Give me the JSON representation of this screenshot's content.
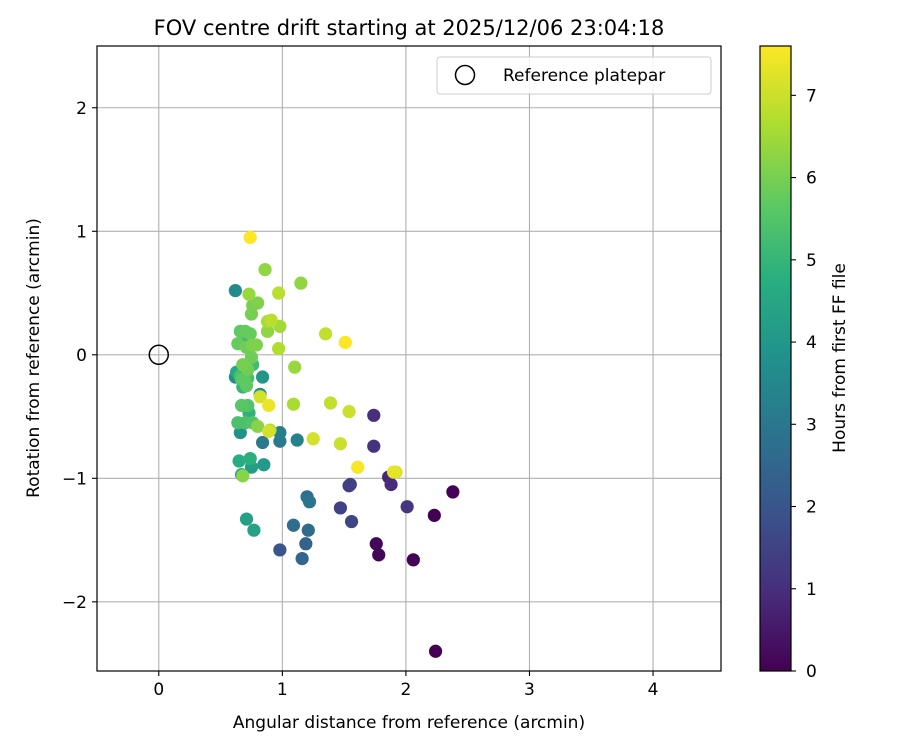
{
  "chart_data": {
    "type": "scatter",
    "title": "FOV centre drift starting at 2025/12/06 23:04:18",
    "xlabel": "Angular distance from reference (arcmin)",
    "ylabel": "Rotation from reference (arcmin)",
    "xlim": [
      -0.5,
      4.55
    ],
    "ylim": [
      -2.56,
      2.5
    ],
    "xticks": [
      0,
      1,
      2,
      3,
      4
    ],
    "yticks": [
      -2,
      -1,
      0,
      1,
      2
    ],
    "grid": true,
    "legend": {
      "position": "upper-right",
      "entries": [
        {
          "label": "Reference platepar",
          "marker": "open-circle"
        }
      ]
    },
    "reference_point": {
      "x": 0,
      "y": 0,
      "label": "Reference platepar"
    },
    "colorbar": {
      "label": "Hours from first FF file",
      "colormap": "viridis",
      "min": 0,
      "max": 7.6,
      "ticks": [
        0,
        1,
        2,
        3,
        4,
        5,
        6,
        7
      ]
    },
    "points": [
      {
        "x": 2.24,
        "y": -2.4,
        "c": 0.0
      },
      {
        "x": 2.23,
        "y": -1.3,
        "c": 0.0
      },
      {
        "x": 2.38,
        "y": -1.11,
        "c": 0.05
      },
      {
        "x": 2.06,
        "y": -1.66,
        "c": 0.05
      },
      {
        "x": 1.76,
        "y": -1.53,
        "c": 0.1
      },
      {
        "x": 1.78,
        "y": -1.62,
        "c": 0.1
      },
      {
        "x": 1.86,
        "y": -0.99,
        "c": 0.8
      },
      {
        "x": 1.88,
        "y": -1.05,
        "c": 0.9
      },
      {
        "x": 1.74,
        "y": -0.49,
        "c": 1.0
      },
      {
        "x": 1.74,
        "y": -0.74,
        "c": 1.1
      },
      {
        "x": 2.01,
        "y": -1.23,
        "c": 1.2
      },
      {
        "x": 1.54,
        "y": -1.06,
        "c": 1.3
      },
      {
        "x": 1.55,
        "y": -1.05,
        "c": 1.4
      },
      {
        "x": 1.47,
        "y": -1.24,
        "c": 1.5
      },
      {
        "x": 1.56,
        "y": -1.35,
        "c": 1.6
      },
      {
        "x": 0.98,
        "y": -1.58,
        "c": 2.0
      },
      {
        "x": 1.19,
        "y": -1.53,
        "c": 2.4
      },
      {
        "x": 1.16,
        "y": -1.65,
        "c": 2.5
      },
      {
        "x": 1.21,
        "y": -1.42,
        "c": 2.6
      },
      {
        "x": 1.09,
        "y": -1.38,
        "c": 2.7
      },
      {
        "x": 1.2,
        "y": -1.15,
        "c": 2.8
      },
      {
        "x": 1.22,
        "y": -1.19,
        "c": 2.9
      },
      {
        "x": 0.98,
        "y": -0.7,
        "c": 3.1
      },
      {
        "x": 0.84,
        "y": -0.71,
        "c": 3.1
      },
      {
        "x": 0.98,
        "y": -0.63,
        "c": 3.2
      },
      {
        "x": 1.12,
        "y": -0.69,
        "c": 3.3
      },
      {
        "x": 0.62,
        "y": 0.52,
        "c": 3.6
      },
      {
        "x": 0.62,
        "y": -0.18,
        "c": 3.7
      },
      {
        "x": 0.66,
        "y": -0.63,
        "c": 3.8
      },
      {
        "x": 0.82,
        "y": -0.32,
        "c": 3.9
      },
      {
        "x": 0.84,
        "y": -0.18,
        "c": 4.0
      },
      {
        "x": 0.85,
        "y": -0.89,
        "c": 4.1
      },
      {
        "x": 0.75,
        "y": -0.91,
        "c": 4.2
      },
      {
        "x": 0.71,
        "y": -1.33,
        "c": 4.3
      },
      {
        "x": 0.77,
        "y": -1.42,
        "c": 4.4
      },
      {
        "x": 0.63,
        "y": -0.14,
        "c": 4.5
      },
      {
        "x": 0.67,
        "y": -0.97,
        "c": 4.6
      },
      {
        "x": 0.65,
        "y": -0.86,
        "c": 4.7
      },
      {
        "x": 0.74,
        "y": -0.84,
        "c": 4.8
      },
      {
        "x": 0.73,
        "y": -0.47,
        "c": 4.9
      },
      {
        "x": 0.68,
        "y": -0.26,
        "c": 5.0
      },
      {
        "x": 0.7,
        "y": 0.12,
        "c": 5.1
      },
      {
        "x": 0.76,
        "y": -0.08,
        "c": 5.2
      },
      {
        "x": 0.72,
        "y": -0.19,
        "c": 5.3
      },
      {
        "x": 0.66,
        "y": -0.17,
        "c": 5.3
      },
      {
        "x": 0.64,
        "y": -0.55,
        "c": 5.4
      },
      {
        "x": 0.7,
        "y": -0.55,
        "c": 5.4
      },
      {
        "x": 0.76,
        "y": -0.55,
        "c": 5.5
      },
      {
        "x": 0.72,
        "y": -0.41,
        "c": 5.5
      },
      {
        "x": 0.67,
        "y": -0.41,
        "c": 5.6
      },
      {
        "x": 0.67,
        "y": -0.2,
        "c": 5.6
      },
      {
        "x": 0.69,
        "y": -0.2,
        "c": 5.7
      },
      {
        "x": 0.71,
        "y": -0.25,
        "c": 5.7
      },
      {
        "x": 0.66,
        "y": 0.19,
        "c": 5.7
      },
      {
        "x": 0.7,
        "y": 0.19,
        "c": 5.8
      },
      {
        "x": 0.74,
        "y": 0.17,
        "c": 5.8
      },
      {
        "x": 0.64,
        "y": 0.09,
        "c": 5.8
      },
      {
        "x": 0.71,
        "y": 0.06,
        "c": 5.9
      },
      {
        "x": 0.75,
        "y": -0.02,
        "c": 5.9
      },
      {
        "x": 0.72,
        "y": -0.12,
        "c": 5.9
      },
      {
        "x": 0.68,
        "y": -0.08,
        "c": 6.0
      },
      {
        "x": 0.75,
        "y": 0.33,
        "c": 6.0
      },
      {
        "x": 0.76,
        "y": 0.4,
        "c": 6.0
      },
      {
        "x": 0.8,
        "y": 0.42,
        "c": 6.1
      },
      {
        "x": 0.76,
        "y": 0.08,
        "c": 6.1
      },
      {
        "x": 0.79,
        "y": 0.08,
        "c": 6.1
      },
      {
        "x": 0.68,
        "y": -0.98,
        "c": 6.2
      },
      {
        "x": 0.8,
        "y": -0.58,
        "c": 6.2
      },
      {
        "x": 0.88,
        "y": 0.19,
        "c": 6.3
      },
      {
        "x": 0.86,
        "y": 0.69,
        "c": 6.3
      },
      {
        "x": 1.15,
        "y": 0.58,
        "c": 6.3
      },
      {
        "x": 0.73,
        "y": 0.49,
        "c": 6.4
      },
      {
        "x": 1.1,
        "y": -0.1,
        "c": 6.4
      },
      {
        "x": 0.98,
        "y": 0.23,
        "c": 6.5
      },
      {
        "x": 0.88,
        "y": 0.27,
        "c": 6.6
      },
      {
        "x": 1.09,
        "y": -0.4,
        "c": 6.6
      },
      {
        "x": 0.9,
        "y": -0.61,
        "c": 6.7
      },
      {
        "x": 0.97,
        "y": 0.05,
        "c": 6.7
      },
      {
        "x": 0.97,
        "y": 0.5,
        "c": 6.8
      },
      {
        "x": 0.91,
        "y": 0.28,
        "c": 6.8
      },
      {
        "x": 1.35,
        "y": 0.17,
        "c": 6.9
      },
      {
        "x": 1.39,
        "y": -0.39,
        "c": 6.9
      },
      {
        "x": 1.54,
        "y": -0.46,
        "c": 7.0
      },
      {
        "x": 1.47,
        "y": -0.72,
        "c": 7.0
      },
      {
        "x": 1.25,
        "y": -0.68,
        "c": 7.1
      },
      {
        "x": 0.89,
        "y": -0.62,
        "c": 7.1
      },
      {
        "x": 0.82,
        "y": -0.34,
        "c": 7.1
      },
      {
        "x": 1.92,
        "y": -0.95,
        "c": 7.2
      },
      {
        "x": 1.9,
        "y": -0.95,
        "c": 7.3
      },
      {
        "x": 0.89,
        "y": -0.41,
        "c": 7.4
      },
      {
        "x": 1.61,
        "y": -0.91,
        "c": 7.5
      },
      {
        "x": 1.51,
        "y": 0.1,
        "c": 7.6
      },
      {
        "x": 0.74,
        "y": 0.95,
        "c": 7.6
      }
    ]
  }
}
